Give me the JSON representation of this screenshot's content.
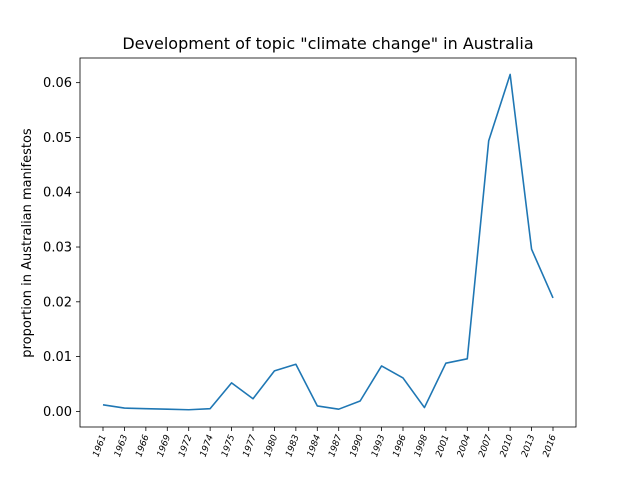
{
  "chart_data": {
    "type": "line",
    "title": "Development of topic \"climate change\" in Australia",
    "xlabel": "",
    "ylabel": "proportion in Australian manifestos",
    "categories": [
      "1961",
      "1963",
      "1966",
      "1969",
      "1972",
      "1974",
      "1975",
      "1977",
      "1980",
      "1983",
      "1984",
      "1987",
      "1990",
      "1993",
      "1996",
      "1998",
      "2001",
      "2004",
      "2007",
      "2010",
      "2013",
      "2016"
    ],
    "series": [
      {
        "color": "#1f77b4",
        "values": [
          0.0012,
          0.0006,
          0.0005,
          0.0004,
          0.0003,
          0.0005,
          0.0052,
          0.0023,
          0.0074,
          0.0086,
          0.001,
          0.0004,
          0.0019,
          0.0083,
          0.0061,
          0.0007,
          0.0088,
          0.0096,
          0.0494,
          0.0615,
          0.0296,
          0.0207
        ]
      }
    ],
    "yticks": [
      "0.00",
      "0.01",
      "0.02",
      "0.03",
      "0.04",
      "0.05",
      "0.06"
    ],
    "ylim": [
      -0.00285,
      0.0645
    ],
    "grid": false
  }
}
